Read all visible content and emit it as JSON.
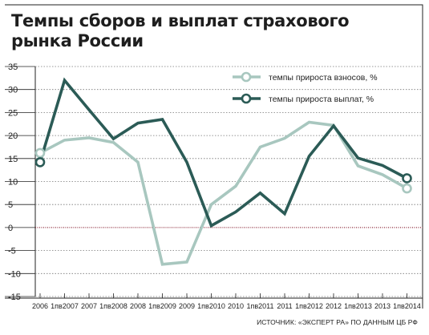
{
  "chart_data": {
    "type": "line",
    "title": "Темпы сборов и выплат страхового рынка России",
    "source": "ИСТОЧНИК: «ЭКСПЕРТ РА» ПО ДАННЫМ ЦБ РФ",
    "categories": [
      "2006",
      "1пв2007",
      "2007",
      "1пв2008",
      "2008",
      "1пв2009",
      "2009",
      "1пв2010",
      "2010",
      "1пв2011",
      "2011",
      "1пв2012",
      "2012",
      "1пв2013",
      "2013",
      "1пв2014"
    ],
    "series": [
      {
        "name": "темпы прироста взносов, %",
        "color": "#a8c7bf",
        "values": [
          16.2,
          19,
          19.5,
          18.5,
          14.2,
          -8,
          -7.5,
          5,
          9,
          17.5,
          19.4,
          22.9,
          22.2,
          13.4,
          11.5,
          8.5
        ]
      },
      {
        "name": "темпы прироста выплат, %",
        "color": "#2b5b56",
        "values": [
          14.2,
          32,
          25.6,
          19.3,
          22.7,
          23.5,
          14.2,
          0.4,
          3.4,
          7.5,
          3,
          15.5,
          22.1,
          15.1,
          13.5,
          10.7
        ]
      }
    ],
    "ylim": [
      -15,
      35
    ],
    "yticks": [
      "-15",
      "-10",
      "-5",
      "0",
      "5",
      "10",
      "15",
      "20",
      "25",
      "30",
      "35"
    ],
    "grid": true,
    "zero_line_color": "#8b2a3a",
    "legend_position": "top-right"
  }
}
